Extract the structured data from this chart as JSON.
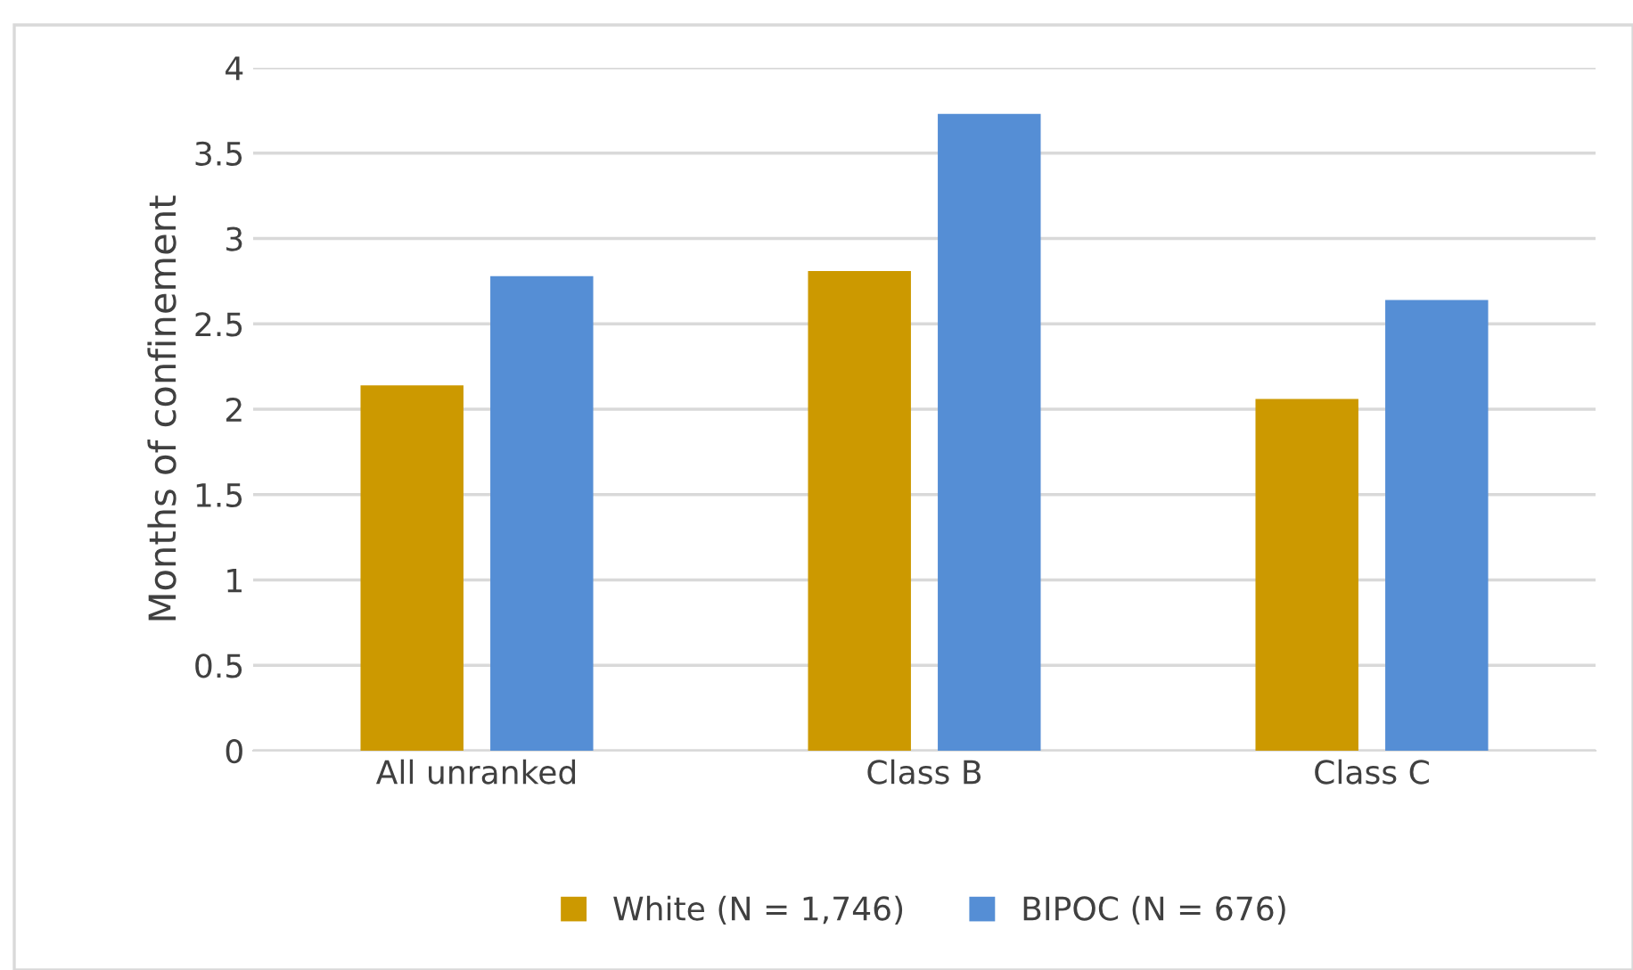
{
  "chart_data": {
    "type": "bar",
    "ylabel": "Months of confinement",
    "categories": [
      "All unranked",
      "Class B",
      "Class C"
    ],
    "series": [
      {
        "name": "White (N = 1,746)",
        "color": "#cc9900",
        "values": [
          2.14,
          2.81,
          2.06
        ]
      },
      {
        "name": "BIPOC (N = 676)",
        "color": "#558ed5",
        "values": [
          2.78,
          3.73,
          2.64
        ]
      }
    ],
    "ylim": [
      0,
      4
    ],
    "yticks": [
      0,
      0.5,
      1,
      1.5,
      2,
      2.5,
      3,
      3.5,
      4
    ],
    "grid": "y",
    "legend": "bottom"
  }
}
